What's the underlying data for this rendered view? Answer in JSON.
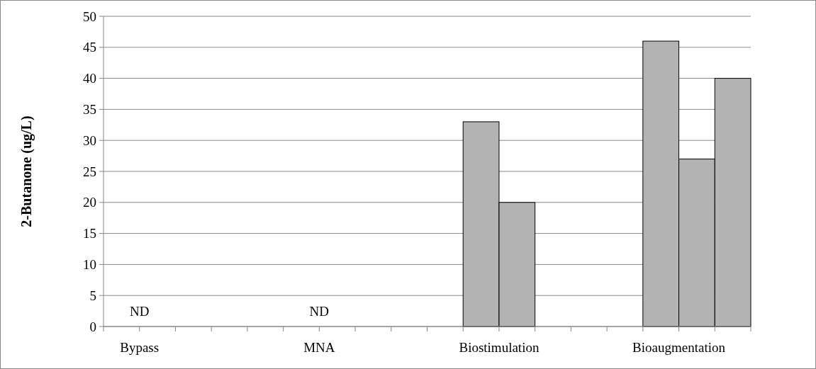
{
  "chart_data": {
    "type": "bar",
    "ylabel": "2-Butanone (ug/L)",
    "categories": [
      null,
      "Bypass",
      null,
      null,
      null,
      null,
      "MNA",
      null,
      null,
      null,
      null,
      "Biostimulation",
      null,
      null,
      null,
      null,
      "Bioaugmentation",
      null
    ],
    "values": [
      null,
      null,
      null,
      null,
      null,
      null,
      null,
      null,
      null,
      null,
      33,
      20,
      null,
      null,
      null,
      46,
      27,
      40
    ],
    "color": "#b3b3b3",
    "ylim": [
      0,
      50
    ],
    "yticks": [
      0,
      5,
      10,
      15,
      20,
      25,
      30,
      35,
      40,
      45,
      50
    ],
    "grid": "y",
    "annotations": [
      "ND",
      "ND"
    ]
  }
}
